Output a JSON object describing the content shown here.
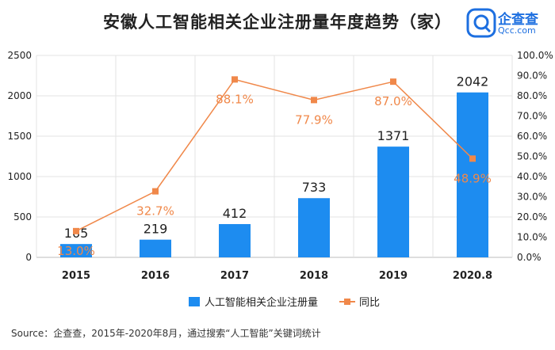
{
  "header": {
    "title": "安徽人工智能相关企业注册量年度趋势（家）",
    "logo_text": "企查查",
    "logo_sub": "Qcc.com"
  },
  "footer": {
    "source": "Source：企查查，2015年-2020年8月，通过搜索“人工智能”关键词统计"
  },
  "colors": {
    "bar": "#1d8cf0",
    "line": "#f0884a",
    "text": "#222222",
    "grid": "#e3e3e3"
  },
  "chart_data": {
    "type": "bar",
    "categories": [
      "2015",
      "2016",
      "2017",
      "2018",
      "2019",
      "2020.8"
    ],
    "series": [
      {
        "name": "人工智能相关企业注册量",
        "type": "bar",
        "axis": "left",
        "values": [
          165,
          219,
          412,
          733,
          1371,
          2042
        ],
        "labels": [
          "165",
          "219",
          "412",
          "733",
          "1371",
          "2042"
        ]
      },
      {
        "name": "同比",
        "type": "line",
        "axis": "right",
        "values": [
          13.0,
          32.7,
          88.1,
          77.9,
          87.0,
          48.9
        ],
        "labels": [
          "13.0%",
          "32.7%",
          "88.1%",
          "77.9%",
          "87.0%",
          "48.9%"
        ]
      }
    ],
    "y_left": {
      "min": 0,
      "max": 2500,
      "ticks": [
        "0",
        "500",
        "1000",
        "1500",
        "2000",
        "2500"
      ]
    },
    "y_right": {
      "min": 0,
      "max": 100,
      "ticks": [
        "0.0%",
        "10.0%",
        "20.0%",
        "30.0%",
        "40.0%",
        "50.0%",
        "60.0%",
        "70.0%",
        "80.0%",
        "90.0%",
        "100.0%"
      ]
    },
    "grid": true,
    "legend": "bottom-center"
  }
}
